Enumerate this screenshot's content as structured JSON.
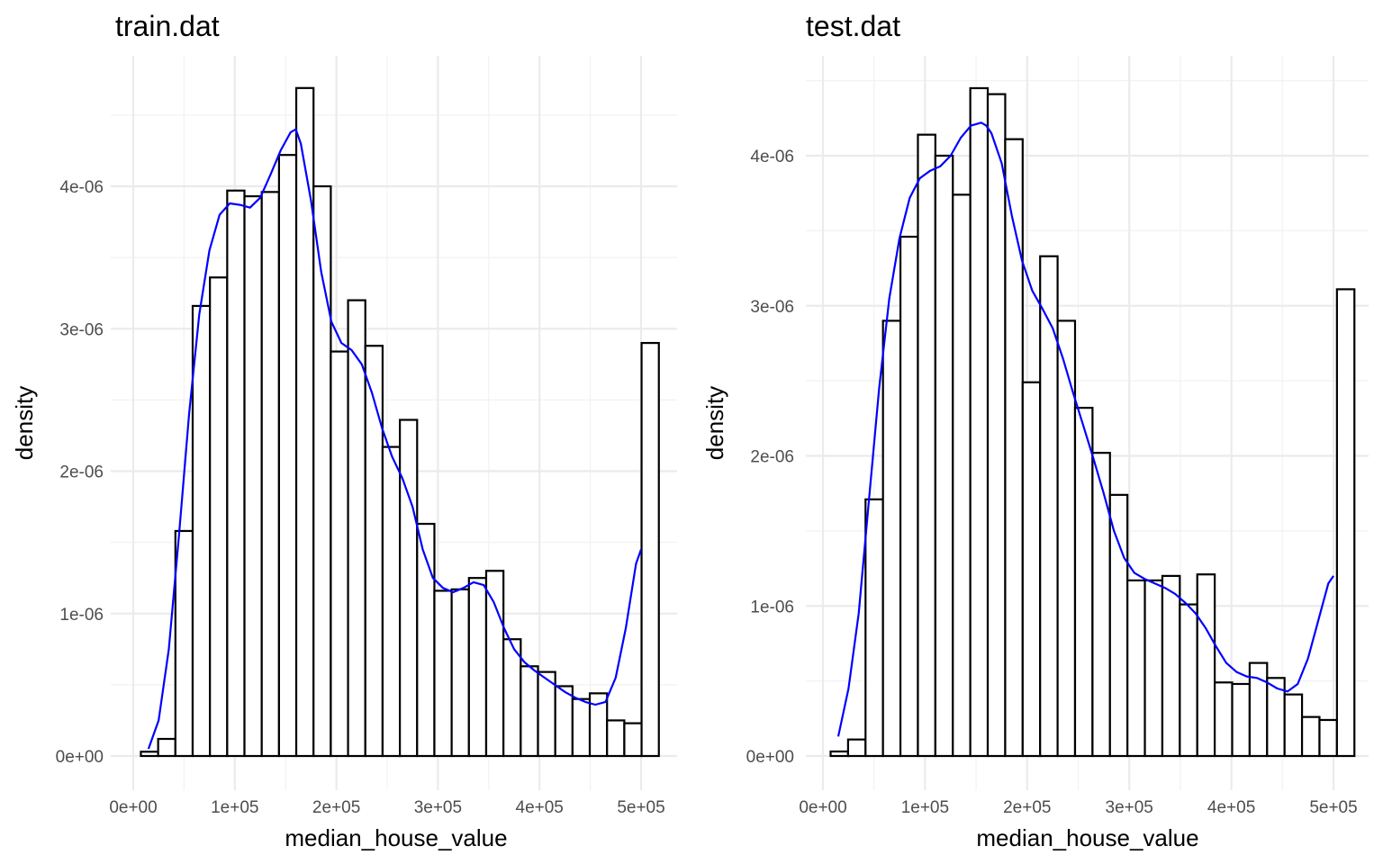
{
  "chart_data": [
    {
      "type": "bar",
      "title": "train.dat",
      "xlabel": "median_house_value",
      "ylabel": "density",
      "xlim": [
        0,
        520000
      ],
      "ylim": [
        0,
        4.95e-06
      ],
      "x_ticks": [
        0,
        100000,
        200000,
        300000,
        400000,
        500000
      ],
      "x_tick_labels": [
        "0e+00",
        "1e+05",
        "2e+05",
        "3e+05",
        "4e+05",
        "5e+05"
      ],
      "y_ticks": [
        0,
        1e-06,
        2e-06,
        3e-06,
        4e-06
      ],
      "y_tick_labels": [
        "0e+00",
        "1e-06",
        "2e-06",
        "3e-06",
        "4e-06"
      ],
      "grid": true,
      "bin_start": 7500,
      "bin_width": 17000,
      "values": [
        3e-08,
        1.2e-07,
        1.58e-06,
        3.16e-06,
        3.36e-06,
        3.97e-06,
        3.93e-06,
        3.96e-06,
        4.22e-06,
        4.69e-06,
        4e-06,
        2.84e-06,
        3.2e-06,
        2.88e-06,
        2.17e-06,
        2.36e-06,
        1.63e-06,
        1.16e-06,
        1.17e-06,
        1.25e-06,
        1.3e-06,
        8.2e-07,
        6.3e-07,
        5.9e-07,
        4.9e-07,
        4e-07,
        4.4e-07,
        2.5e-07,
        2.3e-07,
        2.9e-06
      ],
      "density_curve": {
        "color": "#0000ff",
        "x": [
          15000,
          25000,
          35000,
          45000,
          55000,
          65000,
          75000,
          85000,
          95000,
          105000,
          115000,
          125000,
          135000,
          145000,
          155000,
          160000,
          165000,
          175000,
          185000,
          195000,
          205000,
          215000,
          225000,
          235000,
          245000,
          255000,
          265000,
          275000,
          285000,
          295000,
          305000,
          315000,
          325000,
          335000,
          345000,
          355000,
          365000,
          375000,
          385000,
          395000,
          405000,
          415000,
          425000,
          435000,
          445000,
          455000,
          465000,
          475000,
          485000,
          495000,
          500000
        ],
        "y": [
          5e-08,
          2.5e-07,
          7.5e-07,
          1.55e-06,
          2.4e-06,
          3.1e-06,
          3.55e-06,
          3.8e-06,
          3.88e-06,
          3.87e-06,
          3.85e-06,
          3.92e-06,
          4.08e-06,
          4.25e-06,
          4.38e-06,
          4.4e-06,
          4.3e-06,
          3.9e-06,
          3.4e-06,
          3.05e-06,
          2.9e-06,
          2.85e-06,
          2.75e-06,
          2.55e-06,
          2.3e-06,
          2.1e-06,
          1.95e-06,
          1.75e-06,
          1.45e-06,
          1.25e-06,
          1.18e-06,
          1.15e-06,
          1.18e-06,
          1.22e-06,
          1.2e-06,
          1.08e-06,
          9e-07,
          7.5e-07,
          6.6e-07,
          6e-07,
          5.5e-07,
          5e-07,
          4.5e-07,
          4.1e-07,
          3.8e-07,
          3.6e-07,
          3.8e-07,
          5.5e-07,
          9e-07,
          1.35e-06,
          1.45e-06
        ]
      }
    },
    {
      "type": "bar",
      "title": "test.dat",
      "xlabel": "median_house_value",
      "ylabel": "density",
      "xlim": [
        0,
        530000
      ],
      "ylim": [
        0,
        4.95e-06
      ],
      "x_ticks": [
        0,
        100000,
        200000,
        300000,
        400000,
        500000
      ],
      "x_tick_labels": [
        "0e+00",
        "1e+05",
        "2e+05",
        "3e+05",
        "4e+05",
        "5e+05"
      ],
      "y_ticks": [
        0,
        1e-06,
        2e-06,
        3e-06,
        4e-06
      ],
      "y_tick_labels": [
        "0e+00",
        "1e-06",
        "2e-06",
        "3e-06",
        "4e-06"
      ],
      "grid": true,
      "bin_start": 7500,
      "bin_width": 17100,
      "values": [
        3e-08,
        1.1e-07,
        1.71e-06,
        2.9e-06,
        3.46e-06,
        4.14e-06,
        4e-06,
        3.74e-06,
        4.45e-06,
        4.41e-06,
        4.11e-06,
        2.49e-06,
        3.33e-06,
        2.9e-06,
        2.32e-06,
        2.02e-06,
        1.74e-06,
        1.17e-06,
        1.17e-06,
        1.2e-06,
        1.01e-06,
        1.21e-06,
        4.9e-07,
        4.8e-07,
        6.2e-07,
        5.2e-07,
        4.1e-07,
        2.6e-07,
        2.4e-07,
        3.11e-06
      ],
      "density_curve": {
        "color": "#0000ff",
        "x": [
          15000,
          25000,
          35000,
          45000,
          55000,
          65000,
          75000,
          85000,
          95000,
          105000,
          115000,
          125000,
          135000,
          145000,
          155000,
          160000,
          165000,
          175000,
          185000,
          195000,
          205000,
          215000,
          225000,
          235000,
          245000,
          255000,
          265000,
          275000,
          285000,
          295000,
          305000,
          315000,
          325000,
          335000,
          345000,
          355000,
          365000,
          375000,
          385000,
          395000,
          405000,
          415000,
          425000,
          435000,
          445000,
          455000,
          465000,
          475000,
          485000,
          495000,
          500000
        ],
        "y": [
          1.3e-07,
          4.5e-07,
          9.5e-07,
          1.7e-06,
          2.45e-06,
          3.05e-06,
          3.45e-06,
          3.72e-06,
          3.85e-06,
          3.9e-06,
          3.93e-06,
          4e-06,
          4.12e-06,
          4.2e-06,
          4.22e-06,
          4.2e-06,
          4.15e-06,
          3.95e-06,
          3.6e-06,
          3.3e-06,
          3.1e-06,
          2.98e-06,
          2.85e-06,
          2.65e-06,
          2.42e-06,
          2.2e-06,
          1.98e-06,
          1.75e-06,
          1.5e-06,
          1.32e-06,
          1.22e-06,
          1.18e-06,
          1.15e-06,
          1.12e-06,
          1.08e-06,
          1.02e-06,
          9.5e-07,
          8.5e-07,
          7.3e-07,
          6.2e-07,
          5.6e-07,
          5.3e-07,
          5.2e-07,
          4.9e-07,
          4.5e-07,
          4.3e-07,
          4.8e-07,
          6.5e-07,
          9e-07,
          1.15e-06,
          1.2e-06
        ]
      }
    }
  ]
}
